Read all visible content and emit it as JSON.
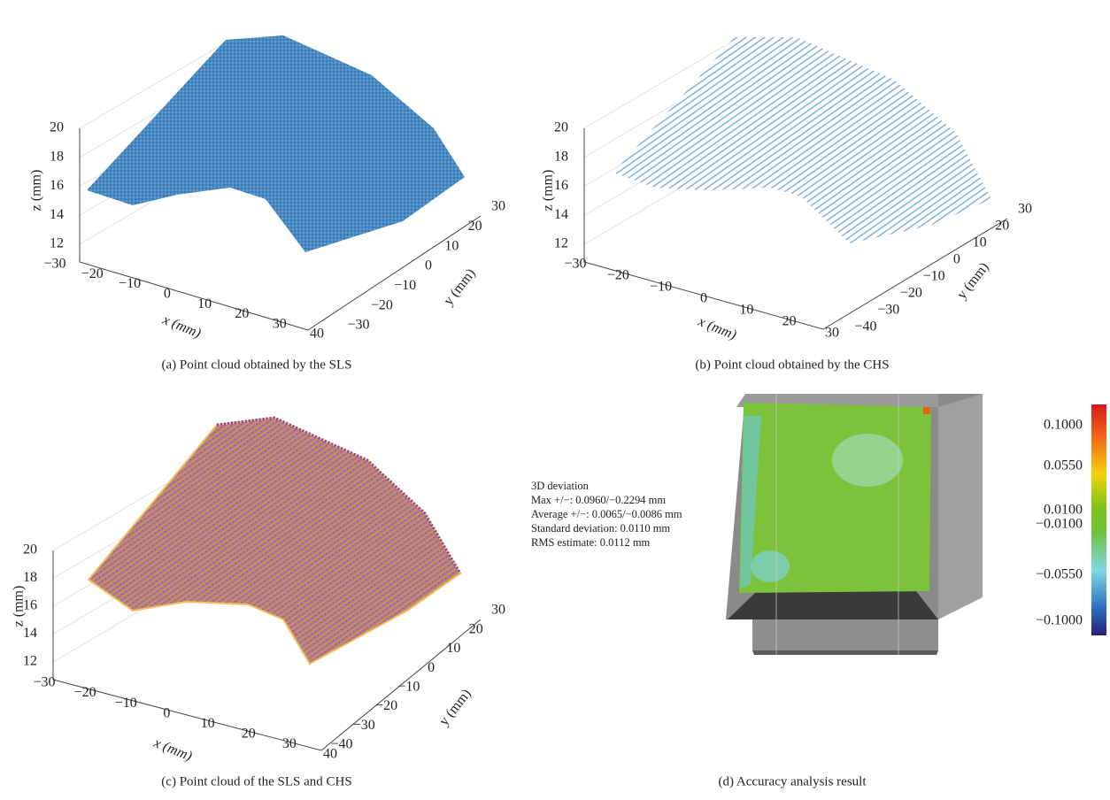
{
  "panels": [
    {
      "caption": "(a) Point cloud obtained by the SLS",
      "z_label": "z (mm)",
      "x_label": "x (mm)",
      "y_label": "y (mm)",
      "z_ticks": [
        "20",
        "18",
        "16",
        "14",
        "12"
      ],
      "x_ticks": [
        "−30",
        "−20",
        "−10",
        "0",
        "10",
        "20",
        "30",
        "40"
      ],
      "y_ticks": [
        "30",
        "20",
        "10",
        "0",
        "−10",
        "−20",
        "−30"
      ]
    },
    {
      "caption": "(b) Point cloud obtained by the CHS",
      "z_label": "z (mm)",
      "x_label": "x (mm)",
      "y_label": "y (mm)",
      "z_ticks": [
        "20",
        "18",
        "16",
        "14",
        "12"
      ],
      "x_ticks": [
        "−30",
        "−20",
        "−10",
        "0",
        "10",
        "20",
        "30"
      ],
      "y_ticks": [
        "30",
        "20",
        "10",
        "0",
        "−10",
        "−20",
        "−30",
        "−40"
      ]
    },
    {
      "caption": "(c) Point cloud of the SLS and CHS",
      "z_label": "z (mm)",
      "x_label": "x (mm)",
      "y_label": "y (mm)",
      "z_ticks": [
        "20",
        "18",
        "16",
        "14",
        "12"
      ],
      "x_ticks": [
        "−30",
        "−20",
        "−10",
        "0",
        "10",
        "20",
        "30",
        "40"
      ],
      "y_ticks": [
        "30",
        "20",
        "10",
        "0",
        "−10",
        "−20",
        "−30",
        "−40"
      ]
    },
    {
      "caption": "(d) Accuracy analysis result",
      "stats": [
        "3D deviation",
        "Max +/−: 0.0960/−0.2294 mm",
        "Average +/−: 0.0065/−0.0086 mm",
        "Standard deviation: 0.0110 mm",
        "RMS estimate: 0.0112 mm"
      ],
      "colorbar_ticks": [
        "0.1000",
        "0.0550",
        "0.0100",
        "−0.0100",
        "−0.0550",
        "−0.1000"
      ]
    }
  ]
}
